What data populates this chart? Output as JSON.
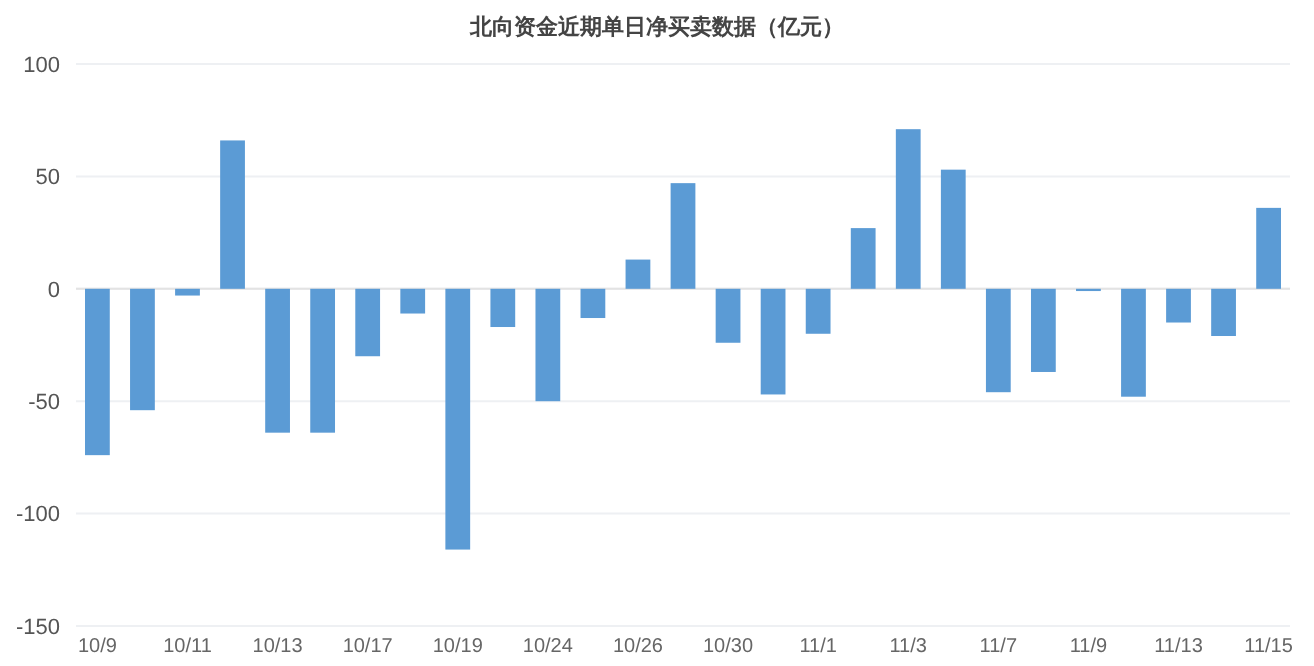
{
  "chart_data": {
    "type": "bar",
    "title": "北向资金近期单日净买卖数据（亿元）",
    "categories": [
      "10/9",
      null,
      "10/11",
      null,
      "10/13",
      null,
      "10/17",
      null,
      "10/19",
      null,
      "10/24",
      null,
      "10/26",
      null,
      "10/30",
      null,
      "11/1",
      null,
      "11/3",
      null,
      "11/7",
      null,
      "11/9",
      null,
      "11/13",
      null,
      "11/15"
    ],
    "values": [
      -74,
      -54,
      -3,
      66,
      -64,
      -64,
      -30,
      -11,
      -116,
      -17,
      -50,
      -13,
      13,
      47,
      -24,
      -47,
      -20,
      27,
      71,
      53,
      -46,
      -37,
      -1,
      -48,
      -15,
      -21,
      36
    ],
    "color": "#5b9bd5",
    "ylim": [
      -150,
      100
    ],
    "yticks": [
      -150,
      -100,
      -50,
      0,
      50,
      100
    ],
    "grid": "y"
  }
}
